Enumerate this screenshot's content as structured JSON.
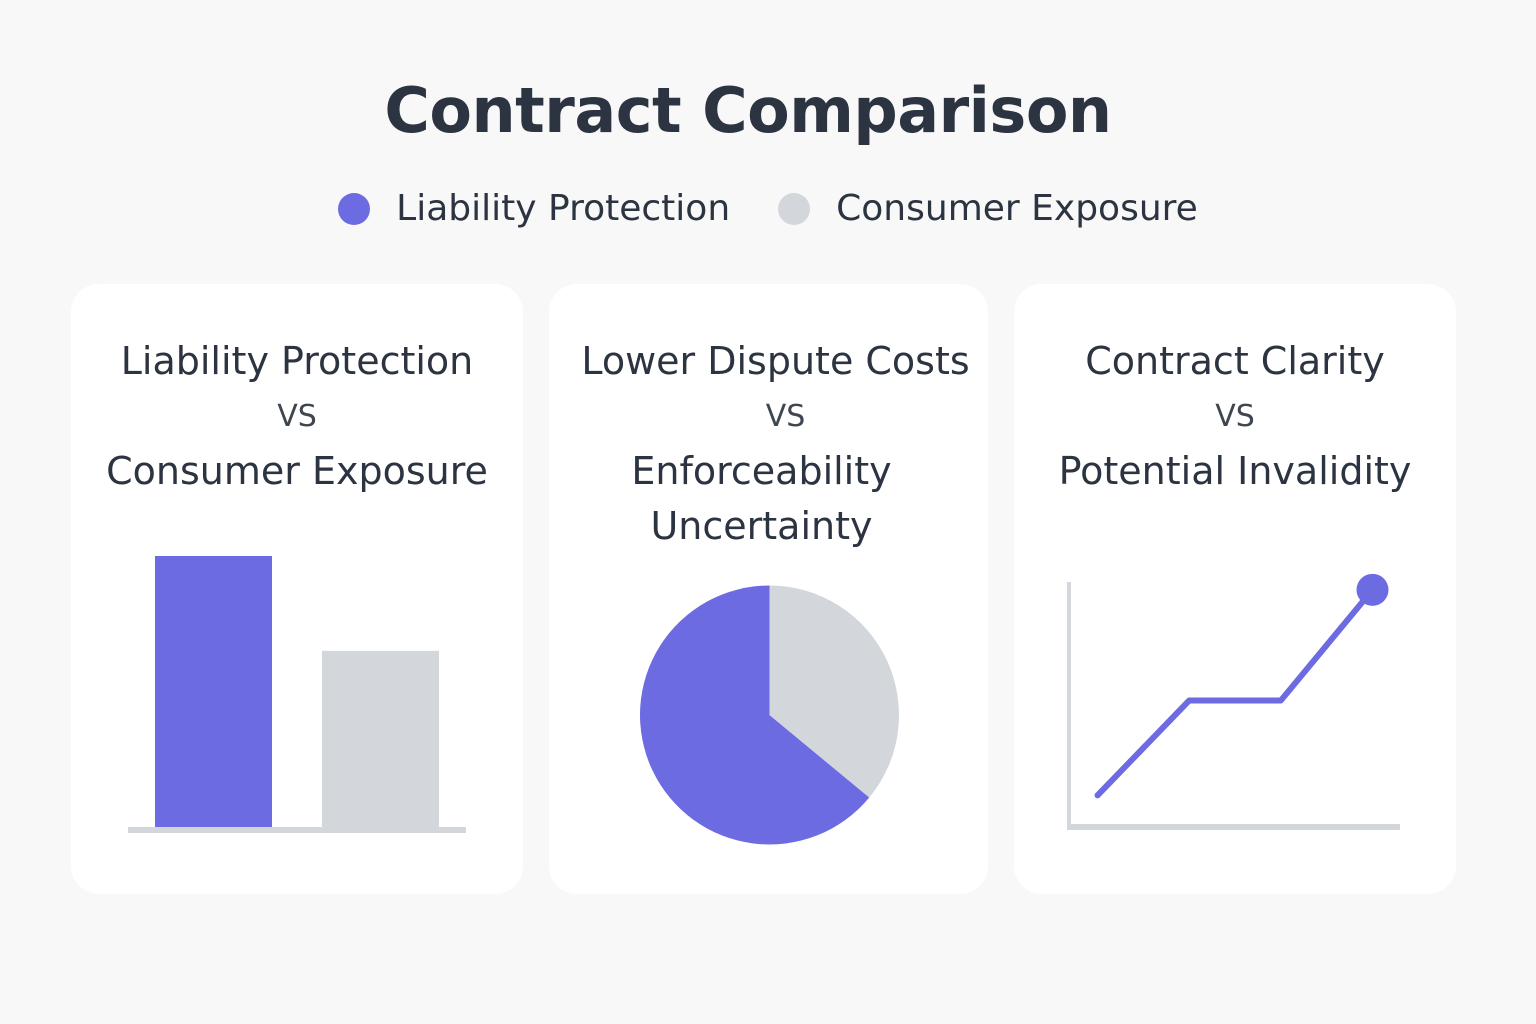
{
  "title": "Contract Comparison",
  "legend": [
    {
      "label": "Liability Protection",
      "color": "#6c6be2"
    },
    {
      "label": "Consumer Exposure",
      "color": "#d3d6db"
    }
  ],
  "colors": {
    "primary": "#6c6be2",
    "secondary": "#d3d6db",
    "axis": "#d3d6db"
  },
  "cards": [
    {
      "title_top": "Liability Protection",
      "vs": "VS",
      "title_bottom": "Consumer Exposure"
    },
    {
      "title_top": "Lower Dispute Costs",
      "vs": "VS",
      "title_bottom": "Enforceability Uncertainty"
    },
    {
      "title_top": "Contract Clarity",
      "vs": "VS",
      "title_bottom": "Potential Invalidity"
    }
  ],
  "chart_data": [
    {
      "type": "bar",
      "categories": [
        "Liability Protection",
        "Consumer Exposure"
      ],
      "values": [
        100,
        65
      ],
      "ylim": [
        0,
        100
      ],
      "grid": false
    },
    {
      "type": "pie",
      "labels": [
        "Liability Protection",
        "Consumer Exposure"
      ],
      "values": [
        64,
        36
      ]
    },
    {
      "type": "line",
      "x": [
        0,
        1,
        2,
        3
      ],
      "y": [
        1,
        4,
        4,
        7.5
      ],
      "xlim": [
        -0.3,
        3.3
      ],
      "ylim": [
        0,
        8
      ],
      "marker_last": true,
      "grid": false
    }
  ]
}
